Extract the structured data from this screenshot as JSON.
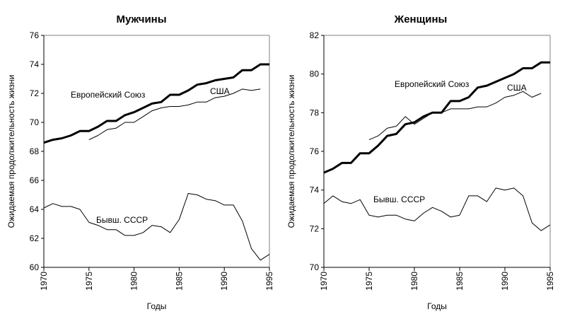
{
  "chart_data": [
    {
      "type": "line",
      "title": "Мужчины",
      "xlabel": "Годы",
      "ylabel": "Ожидаемая продолжительность жизни",
      "xlim": [
        1970,
        1995
      ],
      "ylim": [
        60,
        76
      ],
      "xticks": [
        1970,
        1975,
        1980,
        1985,
        1990,
        1995
      ],
      "yticks": [
        60,
        62,
        64,
        66,
        68,
        70,
        72,
        74,
        76
      ],
      "grid": false,
      "series": [
        {
          "name": "Европейский Союз",
          "style": "thick",
          "x_start": 1970,
          "values": [
            68.6,
            68.8,
            68.9,
            69.1,
            69.4,
            69.4,
            69.7,
            70.1,
            70.1,
            70.5,
            70.7,
            71.0,
            71.3,
            71.4,
            71.9,
            71.9,
            72.2,
            72.6,
            72.7,
            72.9,
            73.0,
            73.1,
            73.6,
            73.6,
            74.0,
            74.0
          ]
        },
        {
          "name": "США",
          "style": "thin",
          "x_start": 1975,
          "values": [
            68.8,
            69.1,
            69.5,
            69.6,
            70.0,
            70.0,
            70.4,
            70.8,
            71.0,
            71.1,
            71.1,
            71.2,
            71.4,
            71.4,
            71.7,
            71.8,
            72.0,
            72.3,
            72.2,
            72.3
          ]
        },
        {
          "name": "Бывш. СССР",
          "style": "thin",
          "x_start": 1970,
          "values": [
            64.1,
            64.4,
            64.2,
            64.2,
            64.0,
            63.1,
            62.9,
            62.6,
            62.6,
            62.2,
            62.2,
            62.4,
            62.9,
            62.8,
            62.4,
            63.3,
            65.1,
            65.0,
            64.7,
            64.6,
            64.3,
            64.3,
            63.2,
            61.3,
            60.5,
            60.9
          ]
        }
      ]
    },
    {
      "type": "line",
      "title": "Женщины",
      "xlabel": "Годы",
      "ylabel": "Ожидаемая продолжительность жизни",
      "xlim": [
        1970,
        1995
      ],
      "ylim": [
        70,
        82
      ],
      "xticks": [
        1970,
        1975,
        1980,
        1985,
        1990,
        1995
      ],
      "yticks": [
        70,
        72,
        74,
        76,
        78,
        80,
        82
      ],
      "grid": false,
      "series": [
        {
          "name": "Европейский Союз",
          "style": "thick",
          "x_start": 1970,
          "values": [
            74.9,
            75.1,
            75.4,
            75.4,
            75.9,
            75.9,
            76.3,
            76.8,
            76.9,
            77.4,
            77.5,
            77.8,
            78.0,
            78.0,
            78.6,
            78.6,
            78.8,
            79.3,
            79.4,
            79.6,
            79.8,
            80.0,
            80.3,
            80.3,
            80.6,
            80.6
          ]
        },
        {
          "name": "США",
          "style": "thin",
          "x_start": 1975,
          "values": [
            76.6,
            76.8,
            77.2,
            77.3,
            77.8,
            77.4,
            77.7,
            78.0,
            78.0,
            78.2,
            78.2,
            78.2,
            78.3,
            78.3,
            78.5,
            78.8,
            78.9,
            79.1,
            78.8,
            79.0
          ]
        },
        {
          "name": "Бывш. СССР",
          "style": "thin",
          "x_start": 1970,
          "values": [
            73.3,
            73.7,
            73.4,
            73.3,
            73.5,
            72.7,
            72.6,
            72.7,
            72.7,
            72.5,
            72.4,
            72.8,
            73.1,
            72.9,
            72.6,
            72.7,
            73.7,
            73.7,
            73.4,
            74.1,
            74.0,
            74.1,
            73.7,
            72.3,
            71.9,
            72.2
          ]
        }
      ]
    }
  ]
}
